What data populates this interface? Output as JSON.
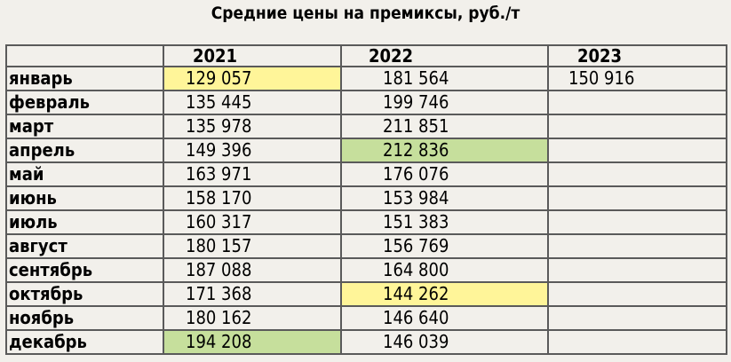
{
  "title": "Средние цены на премиксы, руб./т",
  "colors": {
    "yellow_highlight": "#fff599",
    "green_highlight": "#c6df9c",
    "background": "#f2f0eb"
  },
  "columns": [
    "",
    "2021",
    "2022",
    "2023"
  ],
  "rows": [
    {
      "month": "январь",
      "v2021": "129 057",
      "v2022": "181 564",
      "v2023": "150 916",
      "hl2021": "yellow",
      "hl2022": ""
    },
    {
      "month": "февраль",
      "v2021": "135 445",
      "v2022": "199 746",
      "v2023": "",
      "hl2021": "",
      "hl2022": ""
    },
    {
      "month": "март",
      "v2021": "135 978",
      "v2022": "211 851",
      "v2023": "",
      "hl2021": "",
      "hl2022": ""
    },
    {
      "month": "апрель",
      "v2021": "149 396",
      "v2022": "212 836",
      "v2023": "",
      "hl2021": "",
      "hl2022": "green"
    },
    {
      "month": "май",
      "v2021": "163 971",
      "v2022": "176 076",
      "v2023": "",
      "hl2021": "",
      "hl2022": ""
    },
    {
      "month": "июнь",
      "v2021": "158 170",
      "v2022": "153 984",
      "v2023": "",
      "hl2021": "",
      "hl2022": ""
    },
    {
      "month": "июль",
      "v2021": "160 317",
      "v2022": "151 383",
      "v2023": "",
      "hl2021": "",
      "hl2022": ""
    },
    {
      "month": "август",
      "v2021": "180 157",
      "v2022": "156 769",
      "v2023": "",
      "hl2021": "",
      "hl2022": ""
    },
    {
      "month": "сентябрь",
      "v2021": "187 088",
      "v2022": "164 800",
      "v2023": "",
      "hl2021": "",
      "hl2022": ""
    },
    {
      "month": "октябрь",
      "v2021": "171 368",
      "v2022": "144 262",
      "v2023": "",
      "hl2021": "",
      "hl2022": "yellow"
    },
    {
      "month": "ноябрь",
      "v2021": "180 162",
      "v2022": "146 640",
      "v2023": "",
      "hl2021": "",
      "hl2022": ""
    },
    {
      "month": "декабрь",
      "v2021": "194 208",
      "v2022": "146 039",
      "v2023": "",
      "hl2021": "green",
      "hl2022": ""
    }
  ]
}
